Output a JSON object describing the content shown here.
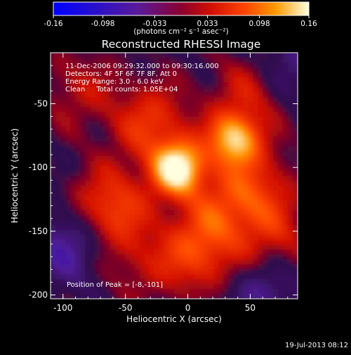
{
  "chart_data": {
    "type": "heatmap",
    "title": "Reconstructed RHESSI Image",
    "xlabel": "Heliocentric X (arcsec)",
    "ylabel": "Heliocentric Y (arcsec)",
    "xlim": [
      -110,
      88
    ],
    "ylim": [
      -203,
      -10
    ],
    "xticks": [
      "-100",
      "-50",
      "0",
      "50"
    ],
    "yticks": [
      "-50",
      "-100",
      "-150",
      "-200"
    ],
    "colorbar": {
      "ticks": [
        "-0.16",
        "-0.098",
        "-0.033",
        "0.033",
        "0.098",
        "0.16"
      ],
      "label": "(photons cm⁻² s⁻¹ asec⁻²)",
      "range": [
        -0.16,
        0.16
      ]
    },
    "annotations": [
      "11-Dec-2006 09:29:32.000 to 09:30:16.000",
      "Detectors: 4F 5F 6F 7F 8F, Att 0",
      "Energy Range: 3.0 - 6.0 keV",
      "Clean     Total counts: 1.05E+04",
      "Position of Peak = [-8,-101]"
    ],
    "peak": [
      -8,
      -101
    ],
    "sources": [
      {
        "x": -8,
        "y": -101,
        "value": 0.16
      },
      {
        "x": 37,
        "y": -78,
        "value": 0.13
      },
      {
        "x": -63,
        "y": -132,
        "value": 0.085
      },
      {
        "x": -30,
        "y": -65,
        "value": 0.07
      },
      {
        "x": 8,
        "y": -168,
        "value": 0.075
      },
      {
        "x": 55,
        "y": -118,
        "value": 0.065
      },
      {
        "x": 70,
        "y": -160,
        "value": 0.05
      },
      {
        "x": -88,
        "y": -38,
        "value": 0.04
      },
      {
        "x": 50,
        "y": -40,
        "value": 0.05
      },
      {
        "x": -40,
        "y": -175,
        "value": 0.035
      },
      {
        "x": 25,
        "y": -135,
        "value": 0.05
      },
      {
        "x": -95,
        "y": -160,
        "value": -0.06
      },
      {
        "x": 62,
        "y": -195,
        "value": -0.05
      },
      {
        "x": 82,
        "y": -20,
        "value": -0.04
      }
    ]
  },
  "footer": {
    "timestamp": "19-Jul-2013 08:12"
  }
}
